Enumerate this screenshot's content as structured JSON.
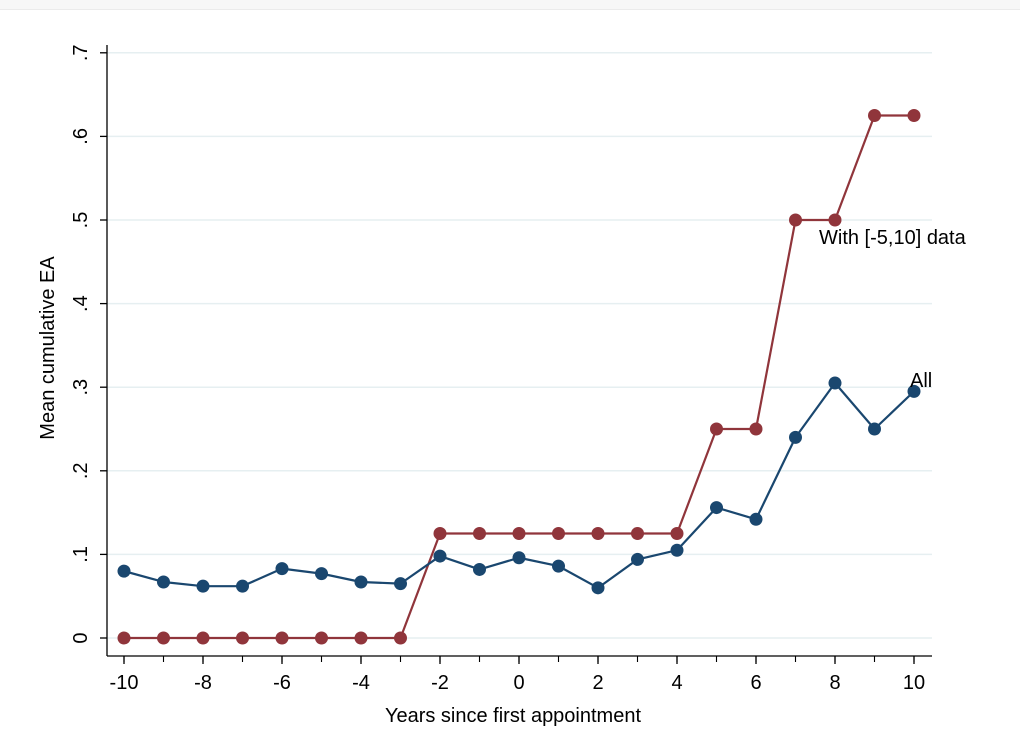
{
  "chart_data": {
    "type": "line",
    "title": "",
    "xlabel": "Years since first appointment",
    "ylabel": "Mean cumulative EA",
    "xlim": [
      -10.3,
      10.1
    ],
    "ylim": [
      -0.02,
      0.7
    ],
    "xticks": [
      -10,
      -8,
      -6,
      -4,
      -2,
      0,
      2,
      4,
      6,
      8,
      10
    ],
    "xtick_labels": [
      "-10",
      "-8",
      "-6",
      "-4",
      "-2",
      "0",
      "2",
      "4",
      "6",
      "8",
      "10"
    ],
    "yticks": [
      0,
      0.1,
      0.2,
      0.3,
      0.4,
      0.5,
      0.6,
      0.7
    ],
    "ytick_labels": [
      "0",
      ".1",
      ".2",
      ".3",
      ".4",
      ".5",
      ".6",
      ".7"
    ],
    "grid": true,
    "x": [
      -10,
      -9,
      -8,
      -7,
      -6,
      -5,
      -4,
      -3,
      -2,
      -1,
      0,
      1,
      2,
      3,
      4,
      5,
      6,
      7,
      8,
      9,
      10
    ],
    "series": [
      {
        "name": "All",
        "color": "#1a476f",
        "values": [
          0.08,
          0.067,
          0.062,
          0.062,
          0.083,
          0.077,
          0.067,
          0.065,
          0.098,
          0.082,
          0.096,
          0.086,
          0.06,
          0.094,
          0.105,
          0.156,
          0.142,
          0.24,
          0.305,
          0.25,
          0.295
        ]
      },
      {
        "name": "With [-5,10] data",
        "color": "#90353b",
        "values": [
          0,
          0,
          0,
          0,
          0,
          0,
          0,
          0,
          0.125,
          0.125,
          0.125,
          0.125,
          0.125,
          0.125,
          0.125,
          0.25,
          0.25,
          0.5,
          0.5,
          0.625,
          0.625
        ]
      }
    ]
  }
}
